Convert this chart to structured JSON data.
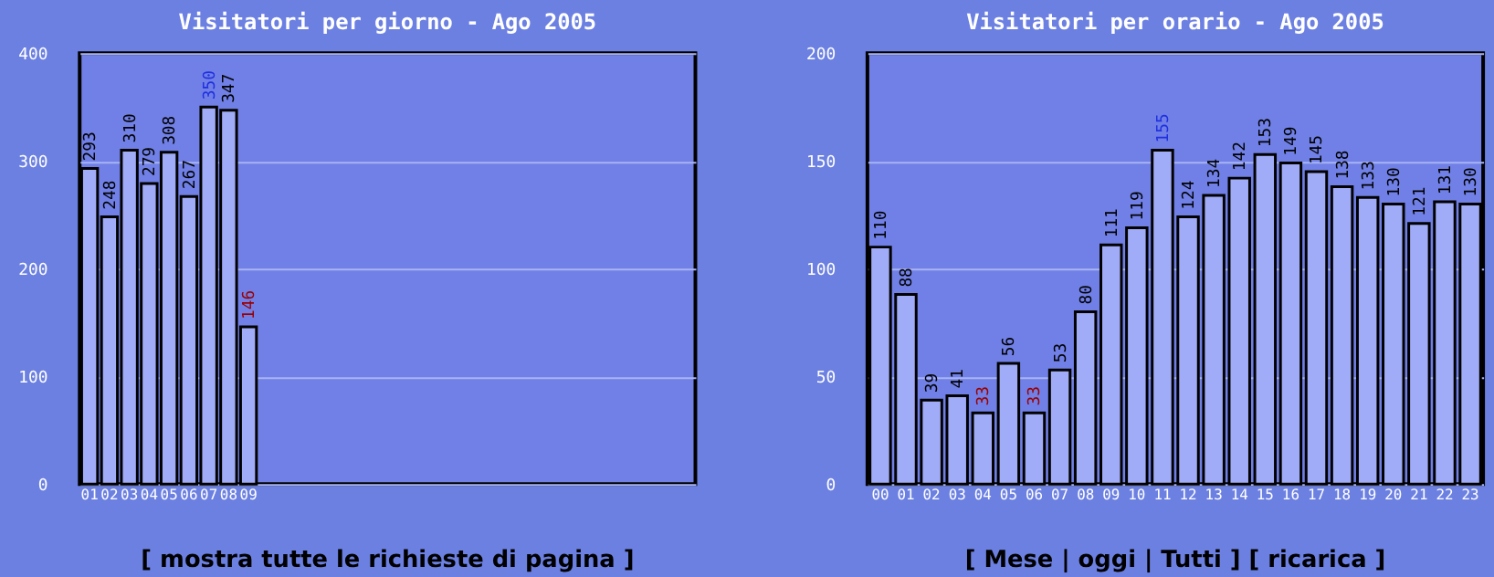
{
  "chart_data": [
    {
      "type": "bar",
      "title": "Visitatori per giorno - Ago 2005",
      "categories": [
        "01",
        "02",
        "03",
        "04",
        "05",
        "06",
        "07",
        "08",
        "09",
        null,
        null,
        null,
        null,
        null,
        null,
        null,
        null,
        null,
        null,
        null,
        null,
        null,
        null,
        null,
        null,
        null,
        null,
        null,
        null,
        null,
        null
      ],
      "values": [
        293,
        248,
        310,
        279,
        308,
        267,
        350,
        347,
        146,
        null,
        null,
        null,
        null,
        null,
        null,
        null,
        null,
        null,
        null,
        null,
        null,
        null,
        null,
        null,
        null,
        null,
        null,
        null,
        null,
        null,
        null
      ],
      "color": "#a0acf8",
      "ylim": [
        0,
        400
      ],
      "yticks": [
        0,
        100,
        200,
        300,
        400
      ],
      "grid": "y",
      "data_labels": true,
      "annotations": [
        "[ mostra tutte le richieste di pagina ]"
      ]
    },
    {
      "type": "bar",
      "title": "Visitatori per orario - Ago 2005",
      "categories": [
        "00",
        "01",
        "02",
        "03",
        "04",
        "05",
        "06",
        "07",
        "08",
        "09",
        "10",
        "11",
        "12",
        "13",
        "14",
        "15",
        "16",
        "17",
        "18",
        "19",
        "20",
        "21",
        "22",
        "23"
      ],
      "values": [
        110,
        88,
        39,
        41,
        33,
        56,
        33,
        53,
        80,
        111,
        119,
        155,
        124,
        134,
        142,
        153,
        149,
        145,
        138,
        133,
        130,
        121,
        131,
        130
      ],
      "color": "#a0acf8",
      "ylim": [
        0,
        200
      ],
      "yticks": [
        0,
        50,
        100,
        150,
        200
      ],
      "grid": "y",
      "data_labels": true,
      "annotations": [
        "[ Mese | oggi | Tutti ]  [ ricarica ]"
      ]
    }
  ]
}
